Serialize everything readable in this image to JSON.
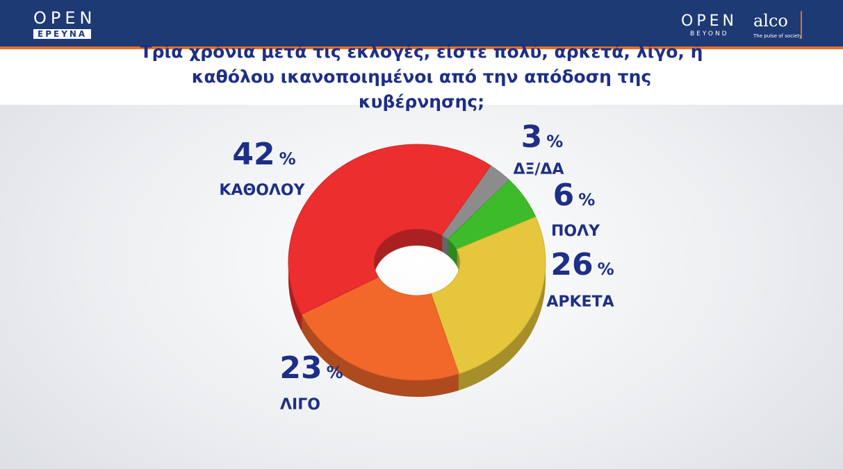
{
  "header": {
    "left_logo": "OPEN",
    "left_logo_sub": "ΕΡΕΥΝΑ",
    "right_logo": "OPEN",
    "right_logo_sub": "BEYOND",
    "partner": "alco",
    "partner_sub": "The pulse of society"
  },
  "chart_data": {
    "type": "pie",
    "title": "Τρία χρόνια μετά τις εκλογές, είστε πολύ, αρκετά, λίγο, ή καθόλου ικανοποιημένοι από την απόδοση της κυβέρνησης;",
    "categories": [
      "ΔΞ/ΔΑ",
      "ΠΟΛΥ",
      "ΑΡΚΕΤΑ",
      "ΛΙΓΟ",
      "ΚΑΘΟΛΟΥ"
    ],
    "values": [
      3,
      6,
      26,
      23,
      42
    ],
    "unit": "%",
    "colors": [
      "#8c8c8c",
      "#3dbb2b",
      "#e6c63c",
      "#f2682a",
      "#ec2e2e"
    ],
    "donut": true
  }
}
